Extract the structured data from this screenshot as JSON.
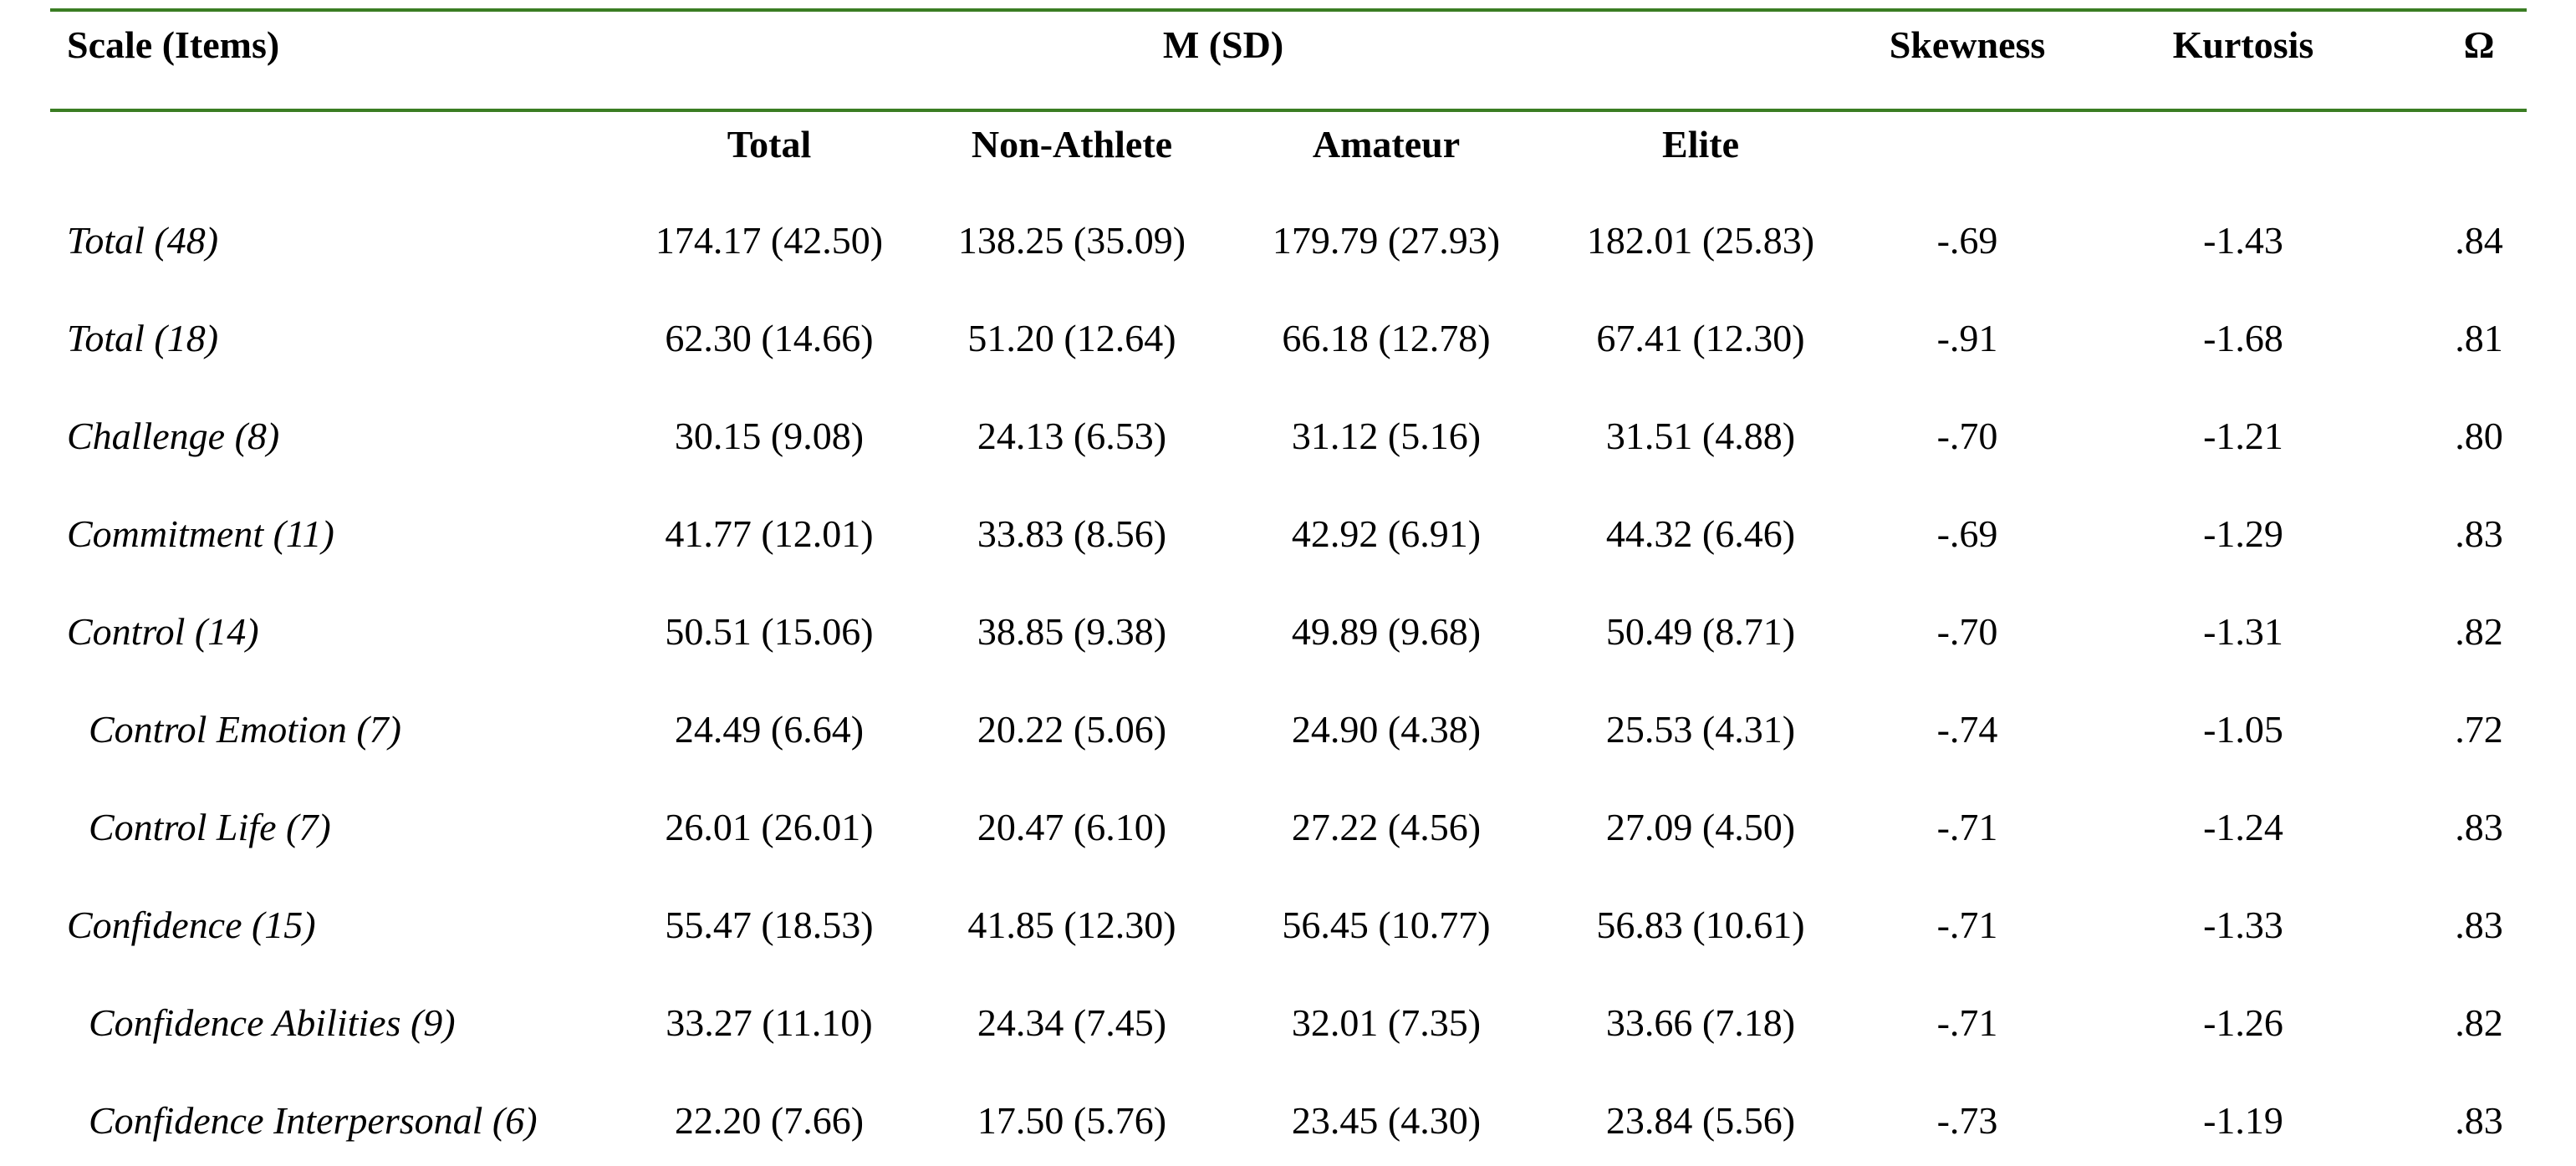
{
  "table": {
    "rule_color": "#3a7d23",
    "headers": {
      "scale": "Scale (Items)",
      "msd": "M (SD)",
      "skewness": "Skewness",
      "kurtosis": "Kurtosis",
      "omega": "Ω"
    },
    "subheaders": {
      "total": "Total",
      "non_athlete": "Non-Athlete",
      "amateur": "Amateur",
      "elite": "Elite"
    },
    "rows": [
      {
        "label": "Total (48)",
        "indent": false,
        "total": "174.17 (42.50)",
        "non_athlete": "138.25 (35.09)",
        "amateur": "179.79 (27.93)",
        "elite": "182.01 (25.83)",
        "skewness": "-.69",
        "kurtosis": "-1.43",
        "omega": ".84"
      },
      {
        "label": "Total (18)",
        "indent": false,
        "total": "62.30 (14.66)",
        "non_athlete": "51.20 (12.64)",
        "amateur": "66.18 (12.78)",
        "elite": "67.41 (12.30)",
        "skewness": "-.91",
        "kurtosis": "-1.68",
        "omega": ".81"
      },
      {
        "label": "Challenge (8)",
        "indent": false,
        "total": "30.15 (9.08)",
        "non_athlete": "24.13 (6.53)",
        "amateur": "31.12 (5.16)",
        "elite": "31.51 (4.88)",
        "skewness": "-.70",
        "kurtosis": "-1.21",
        "omega": ".80"
      },
      {
        "label": "Commitment (11)",
        "indent": false,
        "total": "41.77 (12.01)",
        "non_athlete": "33.83 (8.56)",
        "amateur": "42.92 (6.91)",
        "elite": "44.32 (6.46)",
        "skewness": "-.69",
        "kurtosis": "-1.29",
        "omega": ".83"
      },
      {
        "label": "Control (14)",
        "indent": false,
        "total": "50.51 (15.06)",
        "non_athlete": "38.85 (9.38)",
        "amateur": "49.89 (9.68)",
        "elite": "50.49 (8.71)",
        "skewness": "-.70",
        "kurtosis": "-1.31",
        "omega": ".82"
      },
      {
        "label": "Control Emotion (7)",
        "indent": true,
        "total": "24.49 (6.64)",
        "non_athlete": "20.22 (5.06)",
        "amateur": "24.90 (4.38)",
        "elite": "25.53 (4.31)",
        "skewness": "-.74",
        "kurtosis": "-1.05",
        "omega": ".72"
      },
      {
        "label": "Control Life (7)",
        "indent": true,
        "total": "26.01 (26.01)",
        "non_athlete": "20.47 (6.10)",
        "amateur": "27.22 (4.56)",
        "elite": "27.09 (4.50)",
        "skewness": "-.71",
        "kurtosis": "-1.24",
        "omega": ".83"
      },
      {
        "label": "Confidence (15)",
        "indent": false,
        "total": "55.47 (18.53)",
        "non_athlete": "41.85 (12.30)",
        "amateur": "56.45 (10.77)",
        "elite": "56.83 (10.61)",
        "skewness": "-.71",
        "kurtosis": "-1.33",
        "omega": ".83"
      },
      {
        "label": "Confidence Abilities (9)",
        "indent": true,
        "total": "33.27 (11.10)",
        "non_athlete": "24.34 (7.45)",
        "amateur": "32.01 (7.35)",
        "elite": "33.66 (7.18)",
        "skewness": "-.71",
        "kurtosis": "-1.26",
        "omega": ".82"
      },
      {
        "label": "Confidence Interpersonal (6)",
        "indent": true,
        "total": "22.20 (7.66)",
        "non_athlete": "17.50 (5.76)",
        "amateur": "23.45 (4.30)",
        "elite": "23.84 (5.56)",
        "skewness": "-.73",
        "kurtosis": "-1.19",
        "omega": ".83"
      }
    ]
  }
}
